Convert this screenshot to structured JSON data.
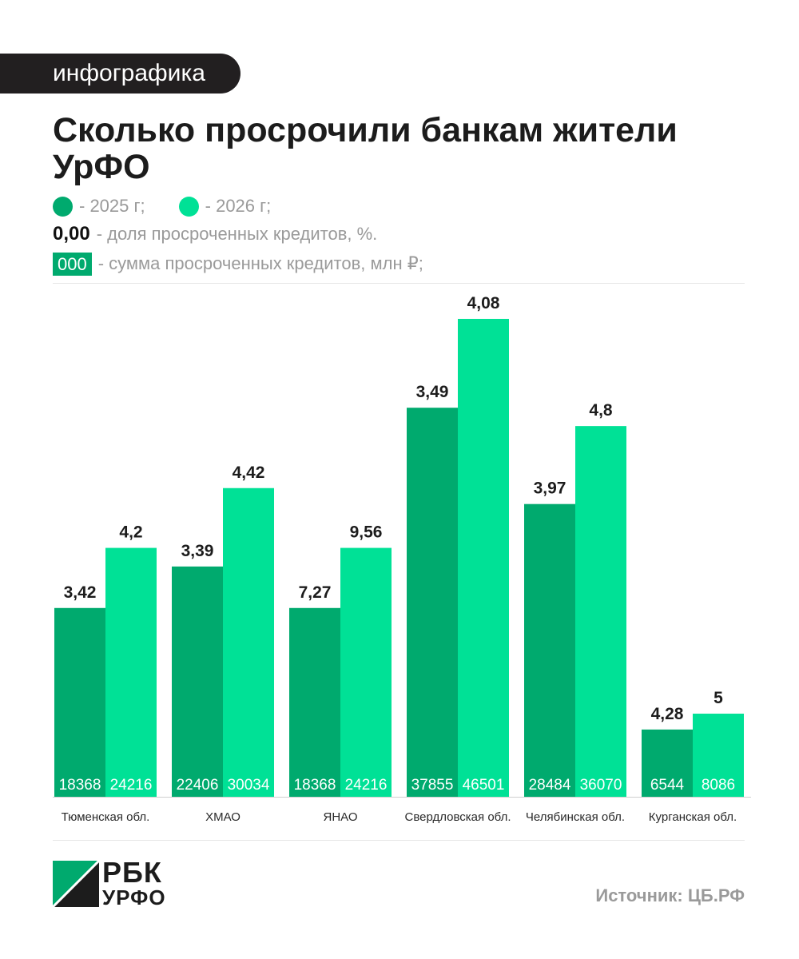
{
  "badge": "инфографика",
  "title": "Сколько просрочили банкам жители УрФО",
  "legend": {
    "y2025": "- 2025 г;",
    "y2026": "- 2026 г;",
    "share_sample": "0,00",
    "share_text": "- доля просроченных кредитов, %.",
    "sum_sample": "000",
    "sum_text": "- сумма просроченных кредитов, млн ₽;"
  },
  "colors": {
    "y2025": "#00aa6e",
    "y2026": "#00e196",
    "badge_bg": "#221f20"
  },
  "chart_data": {
    "type": "bar",
    "categories": [
      "Тюменская обл.",
      "ХМАО",
      "ЯНАО",
      "Свердловская обл.",
      "Челябинская обл.",
      "Курганская обл."
    ],
    "series": [
      {
        "name": "2025 г",
        "share_labels": [
          "3,42",
          "3,39",
          "7,27",
          "3,49",
          "3,97",
          "4,28"
        ],
        "values": [
          18368,
          22406,
          18368,
          37855,
          28484,
          6544
        ],
        "value_labels": [
          "18368",
          "22406",
          "18368",
          "37855",
          "28484",
          "6544"
        ]
      },
      {
        "name": "2026 г",
        "share_labels": [
          "4,2",
          "4,42",
          "9,56",
          "4,08",
          "4,8",
          "5"
        ],
        "values": [
          24216,
          30034,
          24216,
          46501,
          36070,
          8086
        ],
        "value_labels": [
          "24216",
          "30034",
          "24216",
          "46501",
          "36070",
          "8086"
        ]
      }
    ],
    "ylim": [
      0,
      46501
    ]
  },
  "logo": {
    "line1": "РБК",
    "line2": "УРФО"
  },
  "source": "Источник: ЦБ.РФ"
}
